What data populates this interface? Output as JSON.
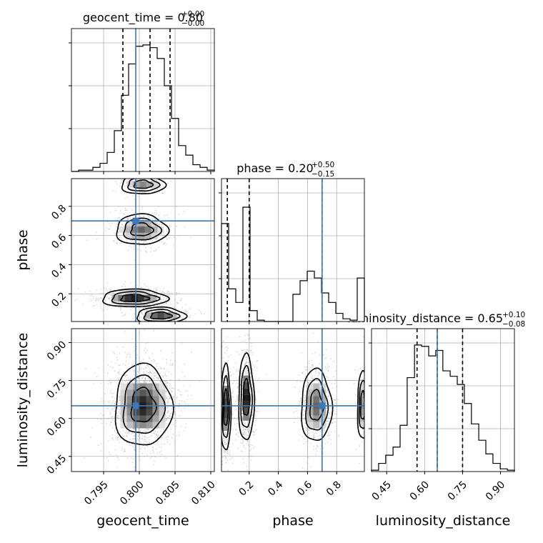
{
  "chart_data": {
    "type": "corner",
    "parameters": [
      "geocent_time",
      "phase",
      "luminosity_distance"
    ],
    "truths": {
      "geocent_time": 0.7995,
      "phase": 0.7,
      "luminosity_distance": 0.65
    },
    "colors": {
      "truth": "#3a7ab8",
      "hist": "#000000",
      "grid": "#b0b0b0"
    },
    "titles": {
      "geocent_time": {
        "name": "geocent_time",
        "median": "0.80",
        "plus": "+0.00",
        "minus": "−0.00"
      },
      "phase": {
        "name": "phase",
        "median": "0.20",
        "plus": "+0.50",
        "minus": "−0.15"
      },
      "luminosity_distance": {
        "name": "luminosity_distance",
        "median": "0.65",
        "plus": "+0.10",
        "minus": "−0.08"
      }
    },
    "axis_labels": {
      "bottom": [
        "geocent_time",
        "phase",
        "luminosity_distance"
      ],
      "left": [
        "phase",
        "luminosity_distance"
      ]
    },
    "ranges": {
      "geocent_time": [
        0.7905,
        0.8105
      ],
      "phase": [
        0.01,
        0.99
      ],
      "luminosity_distance": [
        0.39,
        0.955
      ]
    },
    "ticks": {
      "geocent_time": {
        "values": [
          0.795,
          0.8,
          0.805,
          0.81
        ],
        "labels": [
          "0.795",
          "0.800",
          "0.805",
          "0.810"
        ]
      },
      "phase": {
        "values": [
          0.2,
          0.4,
          0.6,
          0.8
        ],
        "labels": [
          "0.2",
          "0.4",
          "0.6",
          "0.8"
        ]
      },
      "luminosity_distance": {
        "values": [
          0.45,
          0.6,
          0.75,
          0.9
        ],
        "labels": [
          "0.45",
          "0.60",
          "0.75",
          "0.90"
        ]
      }
    },
    "quantiles": {
      "geocent_time": [
        0.7977,
        0.8015,
        0.8043
      ],
      "phase": [
        0.05,
        0.2,
        0.7
      ],
      "luminosity_distance": [
        0.57,
        0.65,
        0.75
      ]
    },
    "histograms": {
      "geocent_time": {
        "edges": [
          0.7905,
          0.7915,
          0.7925,
          0.7935,
          0.7945,
          0.7955,
          0.7965,
          0.7975,
          0.7985,
          0.7995,
          0.8005,
          0.8015,
          0.8025,
          0.8035,
          0.8045,
          0.8055,
          0.8065,
          0.8075,
          0.8085,
          0.8095,
          0.8105
        ],
        "counts": [
          0.0,
          0.01,
          0.01,
          0.03,
          0.06,
          0.14,
          0.3,
          0.56,
          0.79,
          0.92,
          0.93,
          0.91,
          0.83,
          0.63,
          0.39,
          0.19,
          0.12,
          0.05,
          0.03,
          0.01
        ],
        "ymax": 1.05
      },
      "phase": {
        "edges": [
          0.01,
          0.059,
          0.108,
          0.157,
          0.206,
          0.255,
          0.304,
          0.353,
          0.402,
          0.451,
          0.5,
          0.549,
          0.598,
          0.647,
          0.696,
          0.745,
          0.794,
          0.843,
          0.892,
          0.941,
          0.99
        ],
        "counts": [
          0.72,
          0.24,
          0.14,
          0.84,
          0.08,
          0.01,
          0.0,
          0.0,
          0.0,
          0.0,
          0.2,
          0.3,
          0.37,
          0.32,
          0.21,
          0.14,
          0.06,
          0.02,
          0.01,
          0.32
        ],
        "ymax": 1.05
      },
      "luminosity_distance": {
        "edges": [
          0.39,
          0.418,
          0.446,
          0.475,
          0.503,
          0.531,
          0.56,
          0.588,
          0.616,
          0.644,
          0.672,
          0.701,
          0.729,
          0.757,
          0.785,
          0.814,
          0.842,
          0.87,
          0.899,
          0.927,
          0.955
        ],
        "counts": [
          0.01,
          0.06,
          0.12,
          0.18,
          0.34,
          0.69,
          0.93,
          0.92,
          0.85,
          0.89,
          0.74,
          0.7,
          0.64,
          0.5,
          0.35,
          0.23,
          0.13,
          0.06,
          0.02,
          0.01
        ],
        "ymax": 1.05
      }
    },
    "blobs": [
      {
        "pair": "geocent_time|phase",
        "cx": 0.8005,
        "cy": 0.95,
        "sx": 0.0016,
        "sy": 0.035,
        "peak": 0.5,
        "n": 140
      },
      {
        "pair": "geocent_time|phase",
        "cx": 0.8003,
        "cy": 0.64,
        "sx": 0.0019,
        "sy": 0.055,
        "peak": 0.65,
        "n": 420
      },
      {
        "pair": "geocent_time|phase",
        "cx": 0.7993,
        "cy": 0.17,
        "sx": 0.0024,
        "sy": 0.032,
        "peak": 0.95,
        "n": 520
      },
      {
        "pair": "geocent_time|phase",
        "cx": 0.803,
        "cy": 0.05,
        "sx": 0.0018,
        "sy": 0.03,
        "peak": 0.75,
        "n": 260
      },
      {
        "pair": "geocent_time|luminosity_distance",
        "cx": 0.8005,
        "cy": 0.65,
        "sx": 0.0021,
        "sy": 0.085,
        "peak": 0.95,
        "n": 1400
      },
      {
        "pair": "phase|luminosity_distance",
        "cx": 0.04,
        "cy": 0.64,
        "sx": 0.018,
        "sy": 0.09,
        "peak": 0.8,
        "n": 420
      },
      {
        "pair": "phase|luminosity_distance",
        "cx": 0.18,
        "cy": 0.68,
        "sx": 0.028,
        "sy": 0.09,
        "peak": 0.95,
        "n": 600
      },
      {
        "pair": "phase|luminosity_distance",
        "cx": 0.66,
        "cy": 0.65,
        "sx": 0.055,
        "sy": 0.075,
        "peak": 0.65,
        "n": 520
      },
      {
        "pair": "phase|luminosity_distance",
        "cx": 0.98,
        "cy": 0.65,
        "sx": 0.02,
        "sy": 0.07,
        "peak": 0.45,
        "n": 160
      }
    ]
  }
}
